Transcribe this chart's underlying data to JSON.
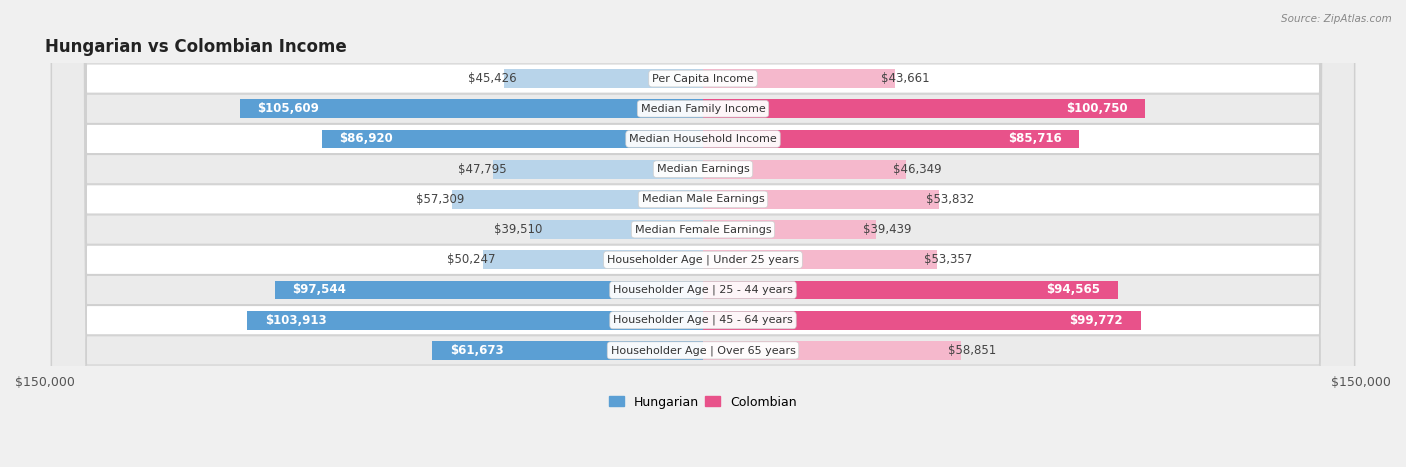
{
  "title": "Hungarian vs Colombian Income",
  "source": "Source: ZipAtlas.com",
  "categories": [
    "Per Capita Income",
    "Median Family Income",
    "Median Household Income",
    "Median Earnings",
    "Median Male Earnings",
    "Median Female Earnings",
    "Householder Age | Under 25 years",
    "Householder Age | 25 - 44 years",
    "Householder Age | 45 - 64 years",
    "Householder Age | Over 65 years"
  ],
  "hungarian_values": [
    45426,
    105609,
    86920,
    47795,
    57309,
    39510,
    50247,
    97544,
    103913,
    61673
  ],
  "colombian_values": [
    43661,
    100750,
    85716,
    46349,
    53832,
    39439,
    53357,
    94565,
    99772,
    58851
  ],
  "hungarian_labels": [
    "$45,426",
    "$105,609",
    "$86,920",
    "$47,795",
    "$57,309",
    "$39,510",
    "$50,247",
    "$97,544",
    "$103,913",
    "$61,673"
  ],
  "colombian_labels": [
    "$43,661",
    "$100,750",
    "$85,716",
    "$46,349",
    "$53,832",
    "$39,439",
    "$53,357",
    "$94,565",
    "$99,772",
    "$58,851"
  ],
  "hungarian_color_light": "#b8d4ea",
  "hungarian_color_dark": "#5b9fd4",
  "colombian_color_light": "#f5b8cc",
  "colombian_color_dark": "#e8528a",
  "dark_threshold": 60000,
  "max_value": 150000,
  "bg_color": "#f0f0f0",
  "row_bg_odd": "#ffffff",
  "row_bg_even": "#ebebeb",
  "bar_height": 0.62,
  "label_fontsize": 8.5,
  "title_fontsize": 12,
  "category_fontsize": 8.0,
  "axis_label_fontsize": 9
}
